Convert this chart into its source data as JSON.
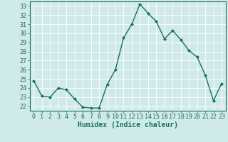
{
  "x": [
    0,
    1,
    2,
    3,
    4,
    5,
    6,
    7,
    8,
    9,
    10,
    11,
    12,
    13,
    14,
    15,
    16,
    17,
    18,
    19,
    20,
    21,
    22,
    23
  ],
  "y": [
    24.8,
    23.1,
    23.0,
    24.0,
    23.8,
    22.8,
    21.9,
    21.8,
    21.8,
    24.4,
    26.0,
    29.5,
    31.0,
    33.2,
    32.2,
    31.3,
    29.4,
    30.3,
    29.3,
    28.1,
    27.4,
    25.4,
    22.6,
    24.5
  ],
  "xlabel": "Humidex (Indice chaleur)",
  "xlim": [
    -0.5,
    23.5
  ],
  "ylim": [
    21.5,
    33.5
  ],
  "yticks": [
    22,
    23,
    24,
    25,
    26,
    27,
    28,
    29,
    30,
    31,
    32,
    33
  ],
  "xticks": [
    0,
    1,
    2,
    3,
    4,
    5,
    6,
    7,
    8,
    9,
    10,
    11,
    12,
    13,
    14,
    15,
    16,
    17,
    18,
    19,
    20,
    21,
    22,
    23
  ],
  "line_color": "#1a7060",
  "marker_color": "#1a7060",
  "bg_color": "#d0eaea",
  "grid_color": "#ffffff",
  "axis_label_color": "#1a7060",
  "tick_color": "#1a7060",
  "xlabel_fontsize": 7,
  "tick_fontsize": 6,
  "marker": "D",
  "marker_size": 2.0,
  "line_width": 1.0
}
